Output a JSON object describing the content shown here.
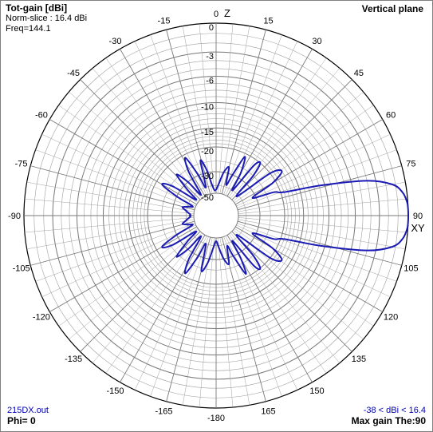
{
  "header": {
    "title": "Tot-gain [dBi]",
    "norm_slice": "Norm-slice : 16.4 dBi",
    "freq": "Freq=144.1",
    "plane": "Vertical plane"
  },
  "footer": {
    "file": "215DX.out",
    "phi": "Phi= 0",
    "range": "-38 < dBi < 16.4",
    "max_gain": "Max gain The:90"
  },
  "colors": {
    "pattern": "#1a1ab4",
    "grid": "#a0a0a0",
    "outer": "#000000"
  },
  "chart_data": {
    "type": "polar",
    "title": "Tot-gain [dBi]",
    "plane": "Vertical plane",
    "angle_unit": "degrees",
    "angle_ticks": [
      -15,
      -30,
      -45,
      -60,
      -75,
      -90,
      -105,
      -120,
      -135,
      -150,
      -165,
      -180,
      165,
      150,
      135,
      120,
      105,
      90,
      75,
      60,
      45,
      30,
      15,
      0
    ],
    "radial_labels": [
      "0",
      "-3",
      "-6",
      "-10",
      "-15",
      "-20",
      "-30",
      "-50"
    ],
    "radial_ticks_db": [
      0,
      -3,
      -6,
      -10,
      -15,
      -20,
      -30,
      -50
    ],
    "radial_range_db": [
      -50,
      0
    ],
    "axis_labels": {
      "top": "Z",
      "right": "XY"
    },
    "series": [
      {
        "angles": [
          0,
          5,
          10,
          15,
          18,
          22,
          26,
          30,
          33,
          37,
          40,
          43,
          47,
          52,
          56,
          60,
          64,
          68,
          71,
          74,
          77,
          80,
          83,
          86,
          88,
          90,
          92,
          94,
          97,
          100,
          103,
          106,
          109,
          112,
          116,
          120,
          124,
          128,
          133,
          137,
          140,
          143,
          147,
          150,
          153,
          157,
          160,
          165,
          170,
          175,
          180,
          185,
          190,
          195,
          200,
          204,
          208,
          212,
          216,
          220,
          224,
          228,
          232,
          236,
          240,
          244,
          248,
          252,
          256,
          260,
          264,
          268,
          270,
          272,
          276,
          280,
          284,
          288,
          292,
          296,
          300,
          304,
          308,
          312,
          316,
          320,
          324,
          328,
          332,
          336,
          340,
          344,
          348,
          352,
          356,
          360
        ],
        "gain_db": [
          -45,
          -38,
          -30,
          -27,
          -38,
          -30,
          -21,
          -27,
          -40,
          -22,
          -20,
          -25,
          -42,
          -20,
          -17,
          -21,
          -32,
          -22,
          -19,
          -10.5,
          -4,
          -1.3,
          -0.4,
          -0.07,
          -0.01,
          0,
          -0.01,
          -0.07,
          -0.4,
          -1.3,
          -4,
          -10.5,
          -19,
          -22,
          -32,
          -21,
          -17,
          -20,
          -42,
          -25,
          -20,
          -22,
          -40,
          -27,
          -21,
          -30,
          -38,
          -27,
          -30,
          -38,
          -45,
          -38,
          -28,
          -24,
          -40,
          -29,
          -21,
          -26,
          -45,
          -30,
          -24,
          -33,
          -45,
          -26,
          -22,
          -30,
          -45,
          -41,
          -36,
          -39,
          -42,
          -45,
          -44,
          -45,
          -42,
          -39,
          -36,
          -41,
          -45,
          -30,
          -22,
          -26,
          -45,
          -33,
          -24,
          -30,
          -45,
          -26,
          -21,
          -29,
          -40,
          -24,
          -28,
          -38,
          -45,
          -45
        ]
      }
    ],
    "max_gain_dbi": 16.4,
    "gain_range_dbi": [
      -38,
      16.4
    ]
  }
}
